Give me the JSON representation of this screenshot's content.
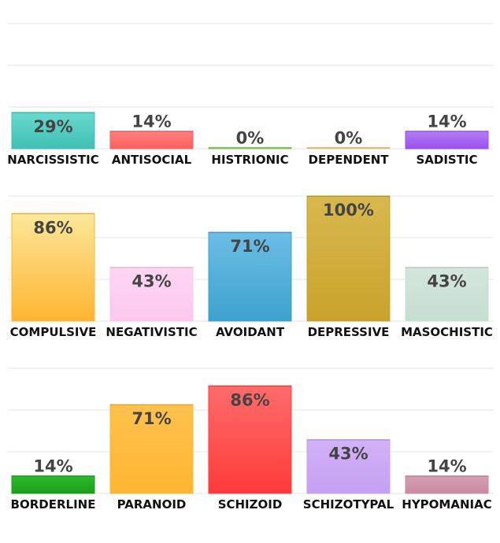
{
  "chart_data": [
    {
      "type": "bar",
      "ylim": [
        0,
        100
      ],
      "grid": true,
      "categories": [
        "NARCISSISTIC",
        "ANTISOCIAL",
        "HISTRIONIC",
        "DEPENDENT",
        "SADISTIC"
      ],
      "values": [
        29,
        14,
        0,
        0,
        14
      ],
      "value_labels": [
        "29%",
        "14%",
        "0%",
        "0%",
        "14%"
      ],
      "colors": [
        [
          "#6ad9cf",
          "#3fbfb3"
        ],
        [
          "#ff8080",
          "#ff5e5e"
        ],
        [
          "#9be07a",
          "#7bd25a"
        ],
        [
          "#ffd9a8",
          "#ffc27a"
        ],
        [
          "#b67df5",
          "#9a4ff0"
        ]
      ]
    },
    {
      "type": "bar",
      "ylim": [
        0,
        100
      ],
      "grid": true,
      "categories": [
        "COMPULSIVE",
        "NEGATIVISTIC",
        "AVOIDANT",
        "DEPRESSIVE",
        "MASOCHISTIC"
      ],
      "values": [
        86,
        43,
        71,
        100,
        43
      ],
      "value_labels": [
        "86%",
        "43%",
        "71%",
        "100%",
        "43%"
      ],
      "colors": [
        [
          "#fbe79a",
          "#ffb531"
        ],
        [
          "#ffd6f3",
          "#fcc7ee"
        ],
        [
          "#6bbde6",
          "#3ea2cc"
        ],
        [
          "#d8b84f",
          "#c9a22b"
        ],
        [
          "#d4e6dc",
          "#c6ddd1"
        ]
      ]
    },
    {
      "type": "bar",
      "ylim": [
        0,
        100
      ],
      "grid": true,
      "categories": [
        "BORDERLINE",
        "PARANOID",
        "SCHIZOID",
        "SCHIZOTYPAL",
        "HYPOMANIAC"
      ],
      "values": [
        14,
        71,
        86,
        43,
        14
      ],
      "value_labels": [
        "14%",
        "71%",
        "86%",
        "43%",
        "14%"
      ],
      "colors": [
        [
          "#2dba2d",
          "#1a9e1a"
        ],
        [
          "#ffc24d",
          "#ffb531"
        ],
        [
          "#ff6b6b",
          "#ff3b3b"
        ],
        [
          "#d2b2f7",
          "#c59ff2"
        ],
        [
          "#d7a0b4",
          "#c98aa1"
        ]
      ]
    }
  ]
}
